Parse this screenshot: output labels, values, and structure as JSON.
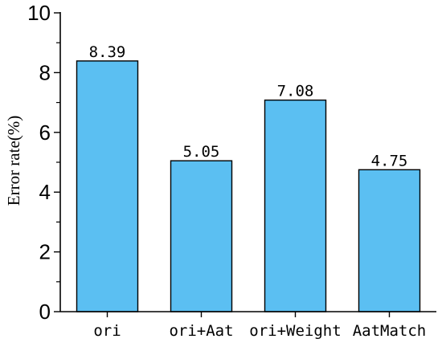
{
  "chart_data": {
    "type": "bar",
    "categories": [
      "ori",
      "ori+Aat",
      "ori+Weight",
      "AatMatch"
    ],
    "values": [
      8.39,
      5.05,
      7.08,
      4.75
    ],
    "value_labels": [
      "8.39",
      "5.05",
      "7.08",
      "4.75"
    ],
    "title": "",
    "xlabel": "",
    "ylabel": "Error rate(%)",
    "ylim": [
      0,
      10
    ],
    "yticks": [
      0,
      2,
      4,
      6,
      8,
      10
    ],
    "ytick_labels": [
      "0",
      "2",
      "4",
      "6",
      "8",
      "10"
    ],
    "grid": false,
    "bar_color": "#5bbff2"
  }
}
